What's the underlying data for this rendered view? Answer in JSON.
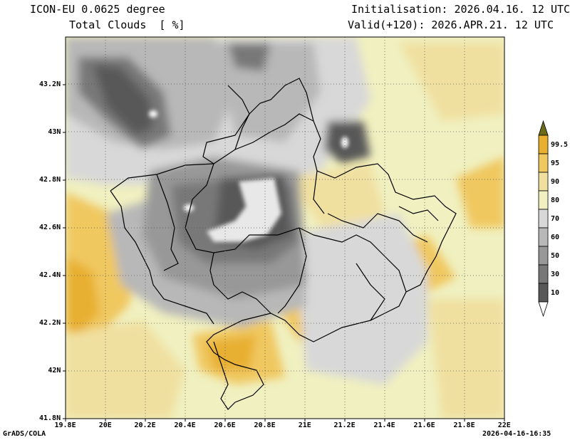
{
  "header": {
    "model": "ICON-EU 0.0625 degree",
    "variable": "Total Clouds  [ %]",
    "init": "Initialisation: 2026.04.16. 12 UTC",
    "valid": "Valid(+120): 2026.APR.21. 12 UTC"
  },
  "footer": {
    "left": "GrADS/COLA",
    "right": "2026-04-16-16:35"
  },
  "map": {
    "lon_range": [
      19.8,
      22.0
    ],
    "lat_range": [
      41.8,
      43.4
    ],
    "x_ticks": [
      "19.8E",
      "20E",
      "20.2E",
      "20.4E",
      "20.6E",
      "20.8E",
      "21E",
      "21.2E",
      "21.4E",
      "21.6E",
      "21.8E",
      "22E"
    ],
    "y_ticks": [
      "43.2N",
      "43N",
      "42.8N",
      "42.6N",
      "42.4N",
      "42.2N",
      "42N",
      "41.8N"
    ]
  },
  "colorbar": {
    "levels": [
      "99.5",
      "95",
      "90",
      "80",
      "70",
      "60",
      "50",
      "30",
      "10"
    ],
    "colors": [
      "#6b6b1a",
      "#e8b030",
      "#f0c860",
      "#f0e0a0",
      "#f0f0c0",
      "#d8d8d8",
      "#b8b8b8",
      "#989898",
      "#787878",
      "#585858",
      "#ffffff"
    ]
  }
}
